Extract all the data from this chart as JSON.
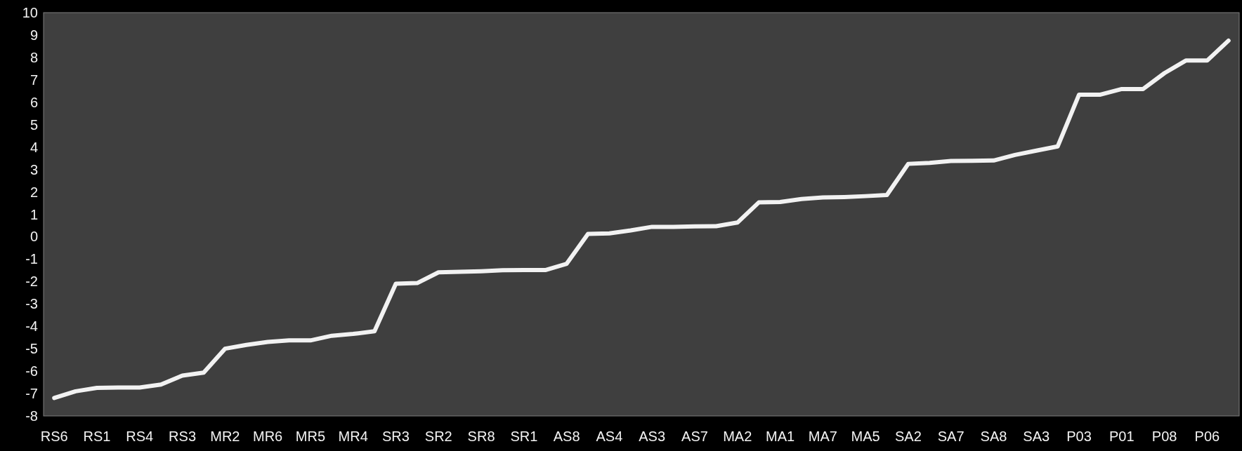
{
  "chart_data": {
    "type": "line",
    "categories": [
      "RS6",
      null,
      "RS1",
      null,
      "RS4",
      null,
      "RS3",
      null,
      "MR2",
      null,
      "MR6",
      null,
      "MR5",
      null,
      "MR4",
      null,
      "SR3",
      null,
      "SR2",
      null,
      "SR8",
      null,
      "SR1",
      null,
      "AS8",
      null,
      "AS4",
      null,
      "AS3",
      null,
      "AS7",
      null,
      "MA2",
      null,
      "MA1",
      null,
      "MA7",
      null,
      "MA5",
      null,
      "SA2",
      null,
      "SA7",
      null,
      "SA8",
      null,
      "SA3",
      null,
      "P03",
      null,
      "P01",
      null,
      "P08",
      null,
      "P06",
      null
    ],
    "series": [
      {
        "color": "#f2f2f2",
        "values": [
          -7.2,
          -6.9,
          -6.75,
          -6.73,
          -6.73,
          -6.6,
          -6.2,
          -6.07,
          -5.0,
          -4.83,
          -4.7,
          -4.63,
          -4.63,
          -4.42,
          -4.34,
          -4.22,
          -2.1,
          -2.07,
          -1.59,
          -1.57,
          -1.54,
          -1.5,
          -1.49,
          -1.49,
          -1.21,
          0.12,
          0.15,
          0.28,
          0.44,
          0.44,
          0.46,
          0.47,
          0.63,
          1.53,
          1.55,
          1.68,
          1.75,
          1.77,
          1.81,
          1.86,
          3.25,
          3.29,
          3.38,
          3.39,
          3.4,
          3.65,
          3.84,
          4.03,
          6.34,
          6.34,
          6.59,
          6.59,
          7.3,
          7.86,
          7.86,
          8.75
        ]
      }
    ],
    "ylim": [
      -8,
      10
    ],
    "yticks": [
      -8,
      -7,
      -6,
      -5,
      -4,
      -3,
      -2,
      -1,
      0,
      1,
      2,
      3,
      4,
      5,
      6,
      7,
      8,
      9,
      10
    ],
    "grid": false,
    "marker": "none",
    "line_style": "solid"
  }
}
